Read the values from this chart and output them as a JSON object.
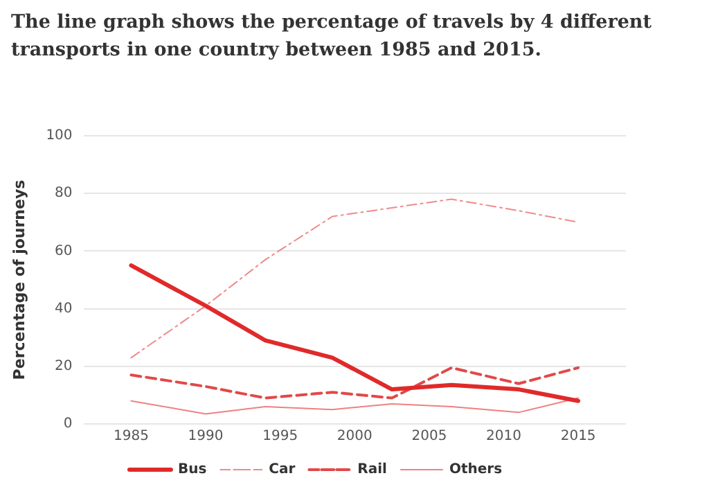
{
  "chart_data": {
    "type": "line",
    "title": "The line graph shows the percentage of travels by 4 different transports in one country between 1985 and 2015.",
    "ylabel": "Percentage of journeys",
    "x": [
      1985,
      1990,
      1994,
      1998.5,
      2002.5,
      2006.5,
      2011,
      2015
    ],
    "series": [
      {
        "name": "Bus",
        "color": "#e02a2a",
        "line_style": "solid",
        "values": [
          55,
          41,
          29,
          23,
          12,
          13.5,
          12,
          8
        ]
      },
      {
        "name": "Car",
        "color": "#f08a8a",
        "line_style": "dotted",
        "values": [
          23,
          41,
          57,
          72,
          75,
          78,
          74,
          70
        ]
      },
      {
        "name": "Rail",
        "color": "#e24848",
        "line_style": "dashed",
        "values": [
          17,
          13,
          9,
          11,
          9,
          19.5,
          14,
          19.5
        ]
      },
      {
        "name": "Others",
        "color": "#f08080",
        "line_style": "solid",
        "values": [
          8,
          3.5,
          6,
          5,
          7,
          6,
          4,
          9
        ]
      }
    ],
    "xlim": [
      1981.8,
      2018.2
    ],
    "xticks": [
      1985,
      1990,
      1995,
      2000,
      2005,
      2010,
      2015
    ],
    "ylim": [
      0,
      100
    ],
    "yticks": [
      0,
      20,
      40,
      60,
      80,
      100
    ],
    "grid": "y",
    "legend": "bottom",
    "marker": "none"
  }
}
